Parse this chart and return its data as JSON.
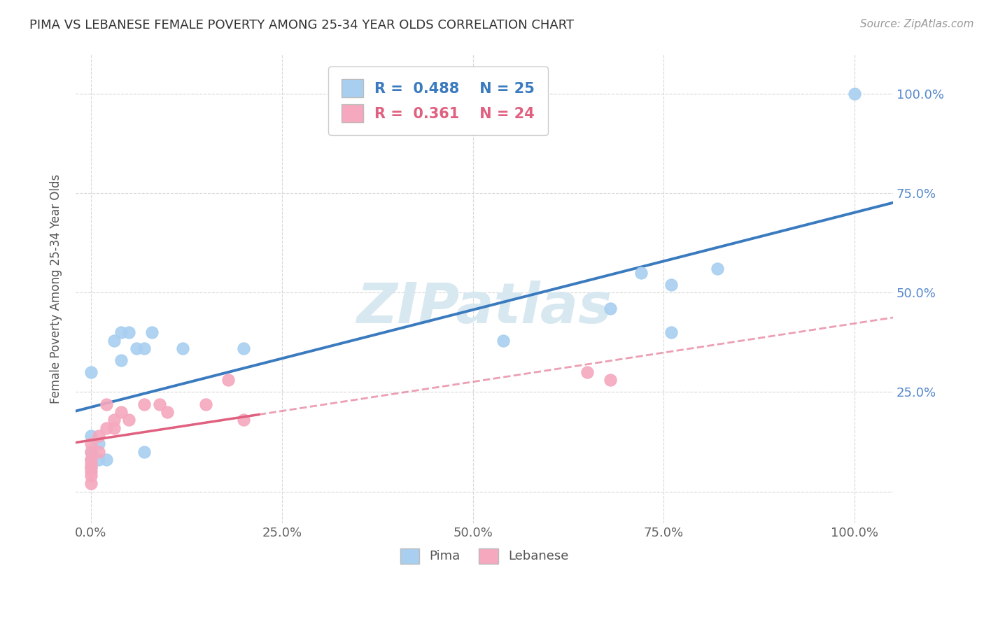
{
  "title": "PIMA VS LEBANESE FEMALE POVERTY AMONG 25-34 YEAR OLDS CORRELATION CHART",
  "source": "Source: ZipAtlas.com",
  "ylabel": "Female Poverty Among 25-34 Year Olds",
  "watermark": "ZIPatlas",
  "pima_R": "0.488",
  "pima_N": "25",
  "lebanese_R": "0.361",
  "lebanese_N": "24",
  "pima_color": "#a8cff0",
  "lebanese_color": "#f5a8be",
  "trend_pima_color": "#3a7abf",
  "trend_lebanese_color": "#e06080",
  "pima_scatter": [
    [
      0.0,
      0.3
    ],
    [
      0.0,
      0.1
    ],
    [
      0.0,
      0.14
    ],
    [
      0.0,
      0.08
    ],
    [
      0.0,
      0.06
    ],
    [
      0.01,
      0.08
    ],
    [
      0.01,
      0.12
    ],
    [
      0.02,
      0.08
    ],
    [
      0.03,
      0.38
    ],
    [
      0.04,
      0.4
    ],
    [
      0.04,
      0.33
    ],
    [
      0.05,
      0.4
    ],
    [
      0.06,
      0.36
    ],
    [
      0.07,
      0.36
    ],
    [
      0.07,
      0.1
    ],
    [
      0.08,
      0.4
    ],
    [
      0.12,
      0.36
    ],
    [
      0.2,
      0.36
    ],
    [
      0.54,
      0.38
    ],
    [
      0.68,
      0.46
    ],
    [
      0.72,
      0.55
    ],
    [
      0.76,
      0.52
    ],
    [
      0.76,
      0.4
    ],
    [
      0.82,
      0.56
    ],
    [
      1.0,
      1.0
    ]
  ],
  "lebanese_scatter": [
    [
      0.0,
      0.02
    ],
    [
      0.0,
      0.04
    ],
    [
      0.0,
      0.05
    ],
    [
      0.0,
      0.06
    ],
    [
      0.0,
      0.07
    ],
    [
      0.0,
      0.08
    ],
    [
      0.0,
      0.1
    ],
    [
      0.0,
      0.12
    ],
    [
      0.01,
      0.1
    ],
    [
      0.01,
      0.14
    ],
    [
      0.02,
      0.16
    ],
    [
      0.02,
      0.22
    ],
    [
      0.03,
      0.16
    ],
    [
      0.03,
      0.18
    ],
    [
      0.04,
      0.2
    ],
    [
      0.05,
      0.18
    ],
    [
      0.07,
      0.22
    ],
    [
      0.09,
      0.22
    ],
    [
      0.1,
      0.2
    ],
    [
      0.15,
      0.22
    ],
    [
      0.18,
      0.28
    ],
    [
      0.2,
      0.18
    ],
    [
      0.65,
      0.3
    ],
    [
      0.68,
      0.28
    ]
  ],
  "xmin": -0.02,
  "xmax": 1.05,
  "ymin": -0.08,
  "ymax": 1.1,
  "xticks": [
    0.0,
    0.25,
    0.5,
    0.75,
    1.0
  ],
  "yticks": [
    0.0,
    0.25,
    0.5,
    0.75,
    1.0
  ],
  "xticklabels": [
    "0.0%",
    "25.0%",
    "50.0%",
    "75.0%",
    "100.0%"
  ],
  "right_yticklabels": [
    "",
    "25.0%",
    "50.0%",
    "75.0%",
    "100.0%"
  ],
  "background_color": "#ffffff",
  "grid_color": "#d8d8d8"
}
